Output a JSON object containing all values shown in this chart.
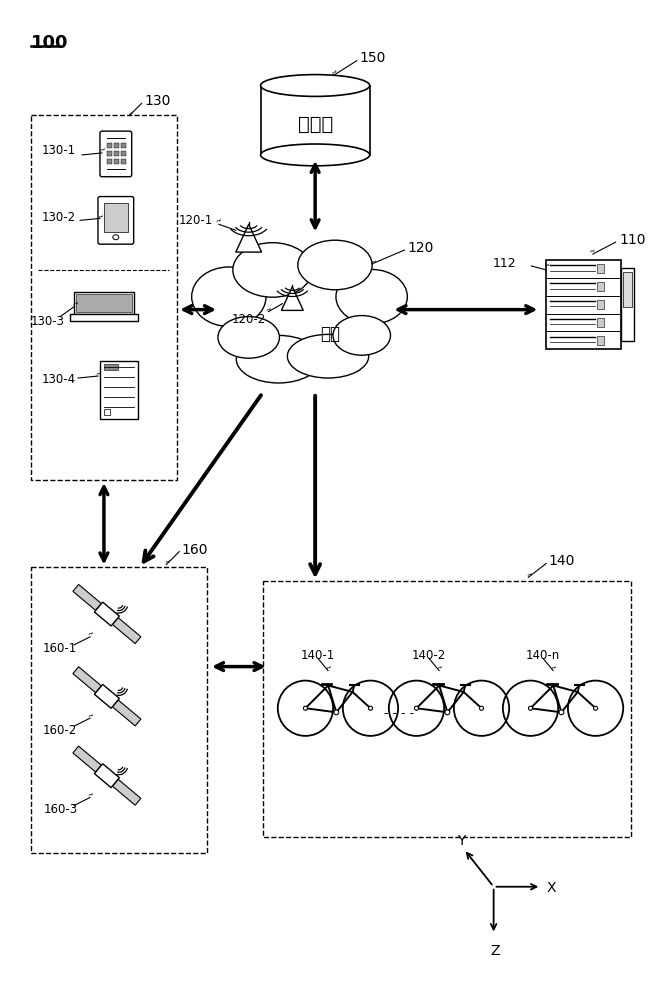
{
  "title_label": "100",
  "bg_color": "#ffffff",
  "text_color": "#000000",
  "label_150": "150",
  "label_storage": "存储器",
  "label_120": "120",
  "label_120_1": "120-1",
  "label_120_2": "120-2",
  "label_network": "网络",
  "label_110": "110",
  "label_112": "112",
  "label_130": "130",
  "label_130_1": "130-1",
  "label_130_2": "130-2",
  "label_130_3": "130-3",
  "label_130_4": "130-4",
  "label_160": "160",
  "label_160_1": "160-1",
  "label_160_2": "160-2",
  "label_160_3": "160-3",
  "label_140": "140",
  "label_140_1": "140-1",
  "label_140_2": "140-2",
  "label_140_n": "140-n",
  "label_Y": "Y",
  "label_X": "X",
  "label_Z": "Z"
}
